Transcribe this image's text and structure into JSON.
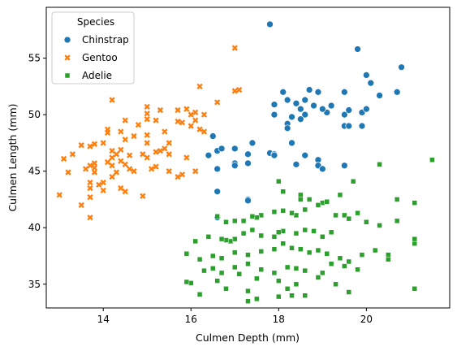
{
  "chart_data": {
    "type": "scatter",
    "xlabel": "Culmen Depth (mm)",
    "ylabel": "Culmen Length (mm)",
    "xlim": [
      12.7,
      21.9
    ],
    "ylim": [
      32.9,
      59.5
    ],
    "xticks": [
      14,
      16,
      18,
      20
    ],
    "yticks": [
      35,
      40,
      45,
      50,
      55
    ],
    "grid": false,
    "legend": {
      "title": "Species",
      "placement": "top-left"
    },
    "series": [
      {
        "name": "Chinstrap",
        "color": "#1f77b4",
        "marker": "circle",
        "points": [
          [
            17.8,
            58.0
          ],
          [
            19.8,
            55.8
          ],
          [
            20.0,
            53.5
          ],
          [
            20.8,
            54.2
          ],
          [
            20.1,
            52.8
          ],
          [
            20.3,
            51.7
          ],
          [
            20.7,
            52.0
          ],
          [
            19.5,
            52.0
          ],
          [
            18.9,
            52.0
          ],
          [
            18.7,
            52.2
          ],
          [
            18.1,
            52.0
          ],
          [
            18.2,
            51.3
          ],
          [
            17.9,
            50.9
          ],
          [
            18.4,
            51.0
          ],
          [
            18.6,
            51.3
          ],
          [
            18.8,
            50.8
          ],
          [
            19.0,
            50.5
          ],
          [
            19.2,
            50.8
          ],
          [
            19.1,
            50.2
          ],
          [
            19.0,
            50.5
          ],
          [
            18.5,
            50.5
          ],
          [
            18.6,
            50.0
          ],
          [
            18.3,
            49.8
          ],
          [
            17.9,
            50.0
          ],
          [
            18.5,
            49.6
          ],
          [
            19.5,
            50.0
          ],
          [
            19.9,
            50.2
          ],
          [
            20.0,
            50.5
          ],
          [
            19.6,
            50.4
          ],
          [
            18.2,
            49.2
          ],
          [
            18.2,
            48.8
          ],
          [
            19.5,
            49.0
          ],
          [
            19.6,
            49.0
          ],
          [
            19.9,
            49.0
          ],
          [
            18.3,
            47.5
          ],
          [
            17.0,
            47.0
          ],
          [
            16.5,
            48.1
          ],
          [
            16.6,
            46.8
          ],
          [
            16.7,
            47.0
          ],
          [
            16.4,
            46.4
          ],
          [
            17.4,
            47.5
          ],
          [
            17.0,
            45.7
          ],
          [
            17.0,
            45.5
          ],
          [
            17.3,
            45.7
          ],
          [
            17.3,
            46.5
          ],
          [
            17.8,
            46.6
          ],
          [
            17.9,
            46.5
          ],
          [
            17.9,
            46.4
          ],
          [
            18.6,
            46.4
          ],
          [
            18.9,
            46.0
          ],
          [
            18.9,
            45.5
          ],
          [
            19.5,
            45.5
          ],
          [
            19.0,
            45.2
          ],
          [
            18.4,
            45.6
          ],
          [
            16.6,
            45.2
          ],
          [
            16.6,
            43.2
          ],
          [
            17.3,
            42.5
          ],
          [
            17.3,
            42.4
          ],
          [
            16.6,
            40.9
          ]
        ]
      },
      {
        "name": "Gentoo",
        "color": "#ff7f0e",
        "marker": "x",
        "points": [
          [
            17.0,
            55.9
          ],
          [
            16.2,
            52.5
          ],
          [
            17.0,
            52.1
          ],
          [
            17.1,
            52.2
          ],
          [
            16.6,
            51.1
          ],
          [
            14.2,
            51.3
          ],
          [
            16.0,
            50.0
          ],
          [
            15.0,
            50.7
          ],
          [
            15.0,
            50.1
          ],
          [
            15.3,
            50.4
          ],
          [
            15.7,
            50.4
          ],
          [
            15.9,
            50.5
          ],
          [
            16.1,
            50.2
          ],
          [
            16.3,
            50.0
          ],
          [
            16.1,
            49.5
          ],
          [
            15.7,
            49.4
          ],
          [
            15.8,
            49.3
          ],
          [
            16.0,
            49.0
          ],
          [
            16.2,
            48.7
          ],
          [
            16.3,
            48.5
          ],
          [
            15.2,
            49.5
          ],
          [
            15.0,
            49.6
          ],
          [
            14.8,
            49.1
          ],
          [
            14.5,
            49.5
          ],
          [
            14.4,
            48.5
          ],
          [
            14.1,
            48.7
          ],
          [
            14.1,
            48.4
          ],
          [
            14.7,
            48.1
          ],
          [
            15.0,
            48.2
          ],
          [
            15.4,
            48.5
          ],
          [
            15.0,
            47.5
          ],
          [
            14.5,
            47.8
          ],
          [
            14.0,
            47.5
          ],
          [
            13.8,
            47.4
          ],
          [
            13.7,
            47.2
          ],
          [
            13.5,
            47.3
          ],
          [
            13.3,
            46.5
          ],
          [
            13.1,
            46.1
          ],
          [
            14.2,
            46.8
          ],
          [
            14.3,
            46.5
          ],
          [
            14.4,
            46.9
          ],
          [
            14.6,
            46.4
          ],
          [
            14.9,
            46.5
          ],
          [
            15.0,
            46.2
          ],
          [
            15.2,
            46.7
          ],
          [
            15.3,
            46.8
          ],
          [
            15.4,
            47.0
          ],
          [
            15.5,
            47.5
          ],
          [
            15.5,
            46.5
          ],
          [
            15.9,
            46.2
          ],
          [
            14.1,
            45.8
          ],
          [
            14.2,
            45.5
          ],
          [
            14.5,
            45.6
          ],
          [
            14.6,
            45.2
          ],
          [
            14.7,
            45.0
          ],
          [
            14.3,
            44.9
          ],
          [
            14.2,
            44.5
          ],
          [
            14.0,
            44.0
          ],
          [
            13.8,
            45.7
          ],
          [
            13.7,
            45.5
          ],
          [
            13.6,
            45.2
          ],
          [
            13.8,
            45.3
          ],
          [
            13.2,
            44.9
          ],
          [
            13.8,
            44.9
          ],
          [
            13.7,
            44.0
          ],
          [
            13.9,
            43.8
          ],
          [
            14.4,
            43.5
          ],
          [
            14.5,
            43.2
          ],
          [
            14.0,
            43.3
          ],
          [
            13.7,
            43.5
          ],
          [
            13.0,
            42.9
          ],
          [
            13.7,
            42.7
          ],
          [
            13.5,
            42.0
          ],
          [
            13.7,
            40.9
          ],
          [
            14.9,
            42.8
          ],
          [
            15.1,
            45.2
          ],
          [
            15.2,
            45.4
          ],
          [
            15.5,
            45.0
          ],
          [
            15.7,
            44.5
          ],
          [
            15.8,
            44.7
          ],
          [
            16.1,
            45.0
          ],
          [
            14.2,
            46.2
          ],
          [
            14.4,
            45.9
          ]
        ]
      },
      {
        "name": "Adelie",
        "color": "#2ca02c",
        "marker": "square",
        "points": [
          [
            21.5,
            46.0
          ],
          [
            20.3,
            45.6
          ],
          [
            19.7,
            44.1
          ],
          [
            18.0,
            44.1
          ],
          [
            18.1,
            43.2
          ],
          [
            18.7,
            42.5
          ],
          [
            19.0,
            42.2
          ],
          [
            19.1,
            42.3
          ],
          [
            19.4,
            42.9
          ],
          [
            18.5,
            42.9
          ],
          [
            18.5,
            42.5
          ],
          [
            18.9,
            42.0
          ],
          [
            18.6,
            41.6
          ],
          [
            18.4,
            41.1
          ],
          [
            18.3,
            41.3
          ],
          [
            18.1,
            41.5
          ],
          [
            17.9,
            41.4
          ],
          [
            17.6,
            41.1
          ],
          [
            17.5,
            40.9
          ],
          [
            17.4,
            41.0
          ],
          [
            17.2,
            40.6
          ],
          [
            17.0,
            40.6
          ],
          [
            16.8,
            40.5
          ],
          [
            16.6,
            41.0
          ],
          [
            19.3,
            41.1
          ],
          [
            19.5,
            41.1
          ],
          [
            19.6,
            40.8
          ],
          [
            19.8,
            41.3
          ],
          [
            20.0,
            40.5
          ],
          [
            20.3,
            40.2
          ],
          [
            20.7,
            40.6
          ],
          [
            21.1,
            42.2
          ],
          [
            20.7,
            42.5
          ],
          [
            21.1,
            38.6
          ],
          [
            21.1,
            39.0
          ],
          [
            19.2,
            39.6
          ],
          [
            19.0,
            39.2
          ],
          [
            18.8,
            39.7
          ],
          [
            18.6,
            39.8
          ],
          [
            18.4,
            39.5
          ],
          [
            18.1,
            39.7
          ],
          [
            18.0,
            39.6
          ],
          [
            17.9,
            39.2
          ],
          [
            17.6,
            39.3
          ],
          [
            17.4,
            39.8
          ],
          [
            17.2,
            39.5
          ],
          [
            17.0,
            39.0
          ],
          [
            16.9,
            38.8
          ],
          [
            16.8,
            38.9
          ],
          [
            16.7,
            39.0
          ],
          [
            16.4,
            39.2
          ],
          [
            16.1,
            38.8
          ],
          [
            15.9,
            37.7
          ],
          [
            16.2,
            37.2
          ],
          [
            16.5,
            37.5
          ],
          [
            16.7,
            37.3
          ],
          [
            17.0,
            37.8
          ],
          [
            17.3,
            37.6
          ],
          [
            17.6,
            37.9
          ],
          [
            17.9,
            38.1
          ],
          [
            18.1,
            38.6
          ],
          [
            18.3,
            38.2
          ],
          [
            18.5,
            38.1
          ],
          [
            18.7,
            37.8
          ],
          [
            18.9,
            38.0
          ],
          [
            19.1,
            37.7
          ],
          [
            19.4,
            37.3
          ],
          [
            19.6,
            37.0
          ],
          [
            19.9,
            37.6
          ],
          [
            20.2,
            38.0
          ],
          [
            20.5,
            37.6
          ],
          [
            18.6,
            36.2
          ],
          [
            18.4,
            36.4
          ],
          [
            18.2,
            36.5
          ],
          [
            17.9,
            36.0
          ],
          [
            17.6,
            36.3
          ],
          [
            17.3,
            36.8
          ],
          [
            17.0,
            36.5
          ],
          [
            16.7,
            36.0
          ],
          [
            16.5,
            36.4
          ],
          [
            16.3,
            36.2
          ],
          [
            19.0,
            36.0
          ],
          [
            19.2,
            36.8
          ],
          [
            19.5,
            36.6
          ],
          [
            19.8,
            36.3
          ],
          [
            20.5,
            37.2
          ],
          [
            17.1,
            35.9
          ],
          [
            17.5,
            35.5
          ],
          [
            18.0,
            35.3
          ],
          [
            18.4,
            35.0
          ],
          [
            18.9,
            35.6
          ],
          [
            19.3,
            35.0
          ],
          [
            16.8,
            34.6
          ],
          [
            17.3,
            34.4
          ],
          [
            18.2,
            34.6
          ],
          [
            18.6,
            34.0
          ],
          [
            16.0,
            35.1
          ],
          [
            15.9,
            35.2
          ],
          [
            17.3,
            33.5
          ],
          [
            18.0,
            33.9
          ],
          [
            19.6,
            34.3
          ],
          [
            21.1,
            34.6
          ],
          [
            16.2,
            34.1
          ],
          [
            16.6,
            35.3
          ],
          [
            17.5,
            33.7
          ],
          [
            18.3,
            34.0
          ]
        ]
      }
    ]
  }
}
